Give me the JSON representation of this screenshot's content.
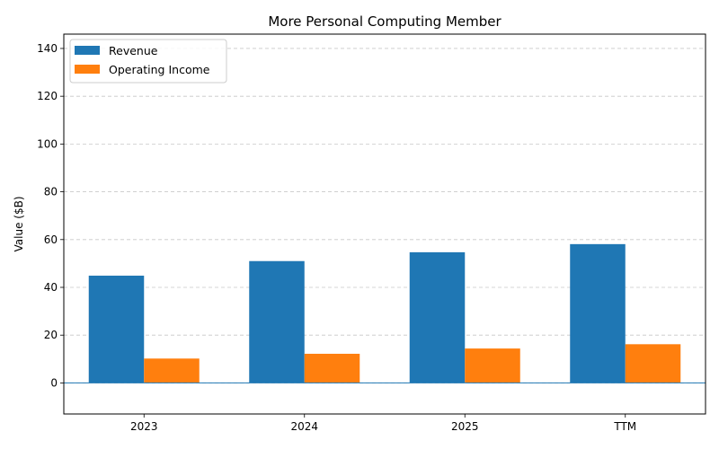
{
  "chart_data": {
    "type": "bar",
    "title": "More Personal Computing Member",
    "xlabel": "",
    "ylabel": "Value ($B)",
    "categories": [
      "2023",
      "2024",
      "2025",
      "TTM"
    ],
    "series": [
      {
        "name": "Revenue",
        "color": "#1f77b4",
        "values": [
          44.9,
          51.0,
          54.7,
          58.1
        ]
      },
      {
        "name": "Operating Income",
        "color": "#ff7f0e",
        "values": [
          10.2,
          12.2,
          14.4,
          16.2
        ]
      }
    ],
    "ylim": [
      -13,
      146
    ],
    "yticks": [
      0,
      20,
      40,
      60,
      80,
      100,
      120,
      140
    ],
    "grid": true,
    "legend_position": "top-left"
  }
}
